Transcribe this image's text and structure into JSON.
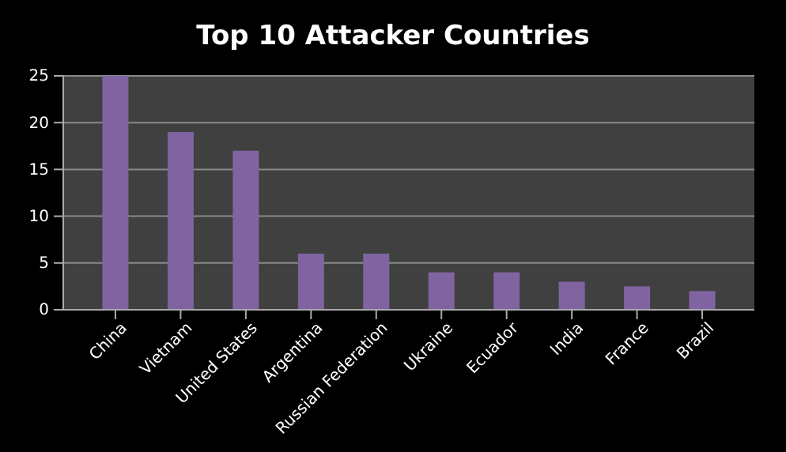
{
  "chart_data": {
    "type": "bar",
    "title": "Top 10 Attacker Countries",
    "categories": [
      "China",
      "Vietnam",
      "United States",
      "Argentina",
      "Russian Federation",
      "Ukraine",
      "Ecuador",
      "India",
      "France",
      "Brazil"
    ],
    "values": [
      25,
      19,
      17,
      6,
      6,
      4,
      4,
      3,
      2.5,
      2
    ],
    "color": "#8064a2",
    "ylim": [
      0,
      25
    ],
    "yticks": [
      0,
      5,
      10,
      15,
      20,
      25
    ],
    "grid": "y"
  }
}
